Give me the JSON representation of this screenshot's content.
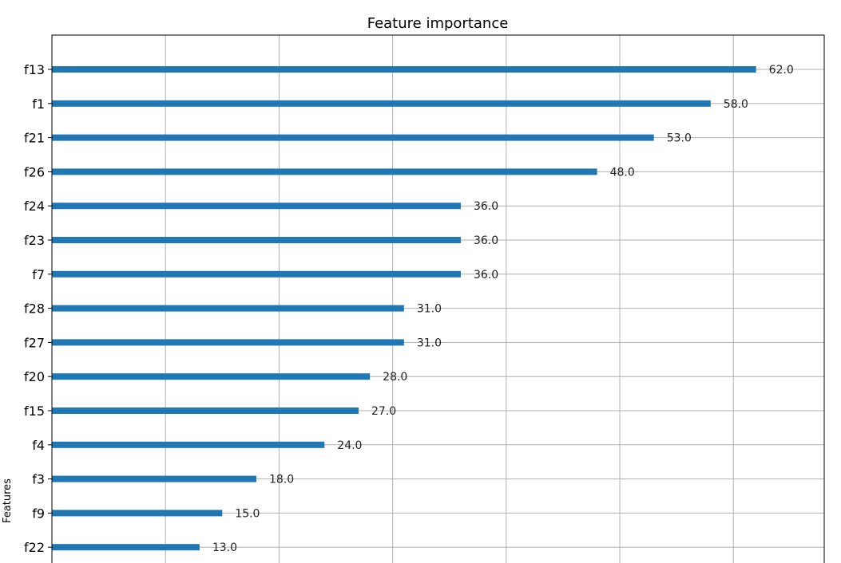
{
  "chart_data": {
    "type": "bar",
    "orientation": "horizontal",
    "title": "Feature importance",
    "ylabel": "Features",
    "xlabel": "",
    "xlim": [
      0,
      68
    ],
    "x_gridlines": [
      0,
      10,
      20,
      30,
      40,
      50,
      60
    ],
    "grid": true,
    "color": "#1f77b4",
    "categories": [
      "f13",
      "f1",
      "f21",
      "f26",
      "f24",
      "f23",
      "f7",
      "f28",
      "f27",
      "f20",
      "f15",
      "f4",
      "f3",
      "f9",
      "f22"
    ],
    "values": [
      62,
      58,
      53,
      48,
      36,
      36,
      36,
      31,
      31,
      28,
      27,
      24,
      18,
      15,
      13
    ],
    "value_labels": [
      "62.0",
      "58.0",
      "53.0",
      "48.0",
      "36.0",
      "36.0",
      "36.0",
      "31.0",
      "31.0",
      "28.0",
      "27.0",
      "24.0",
      "18.0",
      "15.0",
      "13.0"
    ]
  }
}
